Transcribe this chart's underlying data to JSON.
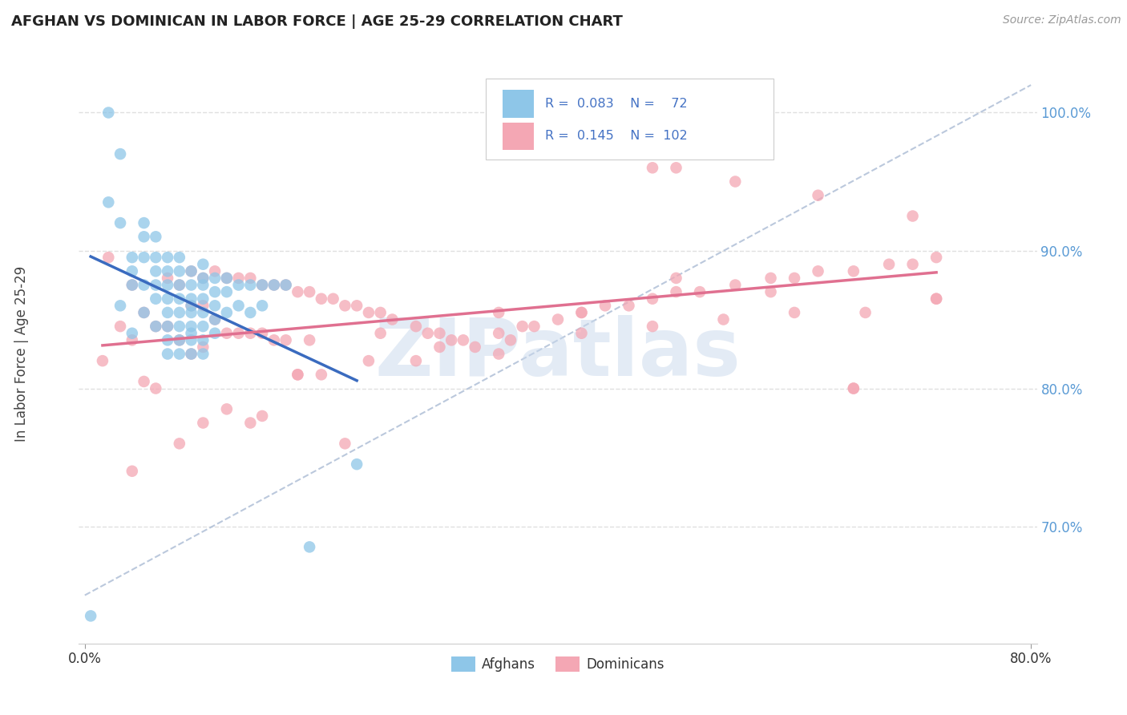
{
  "title": "AFGHAN VS DOMINICAN IN LABOR FORCE | AGE 25-29 CORRELATION CHART",
  "source": "Source: ZipAtlas.com",
  "ylabel": "In Labor Force | Age 25-29",
  "xlim": [
    -0.005,
    0.805
  ],
  "ylim": [
    0.615,
    1.035
  ],
  "xticks": [
    0.0,
    0.8
  ],
  "xticklabels": [
    "0.0%",
    "80.0%"
  ],
  "yticks": [
    0.7,
    0.8,
    0.9,
    1.0
  ],
  "yticklabels": [
    "70.0%",
    "80.0%",
    "90.0%",
    "100.0%"
  ],
  "ytick_color": "#5b9bd5",
  "xtick_color": "#333333",
  "afghan_color": "#8ec6e8",
  "dominican_color": "#f4a7b4",
  "afghan_R": 0.083,
  "afghan_N": 72,
  "dominican_R": 0.145,
  "dominican_N": 102,
  "legend_color": "#4472c4",
  "watermark_text": "ZIPatlas",
  "watermark_color": "#c8d8ec",
  "watermark_alpha": 0.5,
  "background_color": "#ffffff",
  "afghan_trend_color": "#3a6bbf",
  "dominican_trend_color": "#e07090",
  "diagonal_color": "#aabbd4",
  "grid_color": "#e0e0e0",
  "afghan_scatter_x": [
    0.005,
    0.02,
    0.02,
    0.03,
    0.03,
    0.03,
    0.04,
    0.04,
    0.04,
    0.04,
    0.05,
    0.05,
    0.05,
    0.05,
    0.05,
    0.06,
    0.06,
    0.06,
    0.06,
    0.06,
    0.06,
    0.07,
    0.07,
    0.07,
    0.07,
    0.07,
    0.07,
    0.07,
    0.07,
    0.08,
    0.08,
    0.08,
    0.08,
    0.08,
    0.08,
    0.08,
    0.08,
    0.09,
    0.09,
    0.09,
    0.09,
    0.09,
    0.09,
    0.09,
    0.09,
    0.09,
    0.1,
    0.1,
    0.1,
    0.1,
    0.1,
    0.1,
    0.1,
    0.1,
    0.11,
    0.11,
    0.11,
    0.11,
    0.11,
    0.12,
    0.12,
    0.12,
    0.13,
    0.13,
    0.14,
    0.14,
    0.15,
    0.15,
    0.16,
    0.17,
    0.19,
    0.23
  ],
  "afghan_scatter_y": [
    0.635,
    1.0,
    0.935,
    0.97,
    0.92,
    0.86,
    0.895,
    0.885,
    0.875,
    0.84,
    0.92,
    0.91,
    0.895,
    0.875,
    0.855,
    0.91,
    0.895,
    0.885,
    0.875,
    0.865,
    0.845,
    0.895,
    0.885,
    0.875,
    0.865,
    0.855,
    0.845,
    0.835,
    0.825,
    0.895,
    0.885,
    0.875,
    0.865,
    0.855,
    0.845,
    0.835,
    0.825,
    0.885,
    0.875,
    0.865,
    0.86,
    0.855,
    0.845,
    0.84,
    0.835,
    0.825,
    0.89,
    0.88,
    0.875,
    0.865,
    0.855,
    0.845,
    0.835,
    0.825,
    0.88,
    0.87,
    0.86,
    0.85,
    0.84,
    0.88,
    0.87,
    0.855,
    0.875,
    0.86,
    0.875,
    0.855,
    0.875,
    0.86,
    0.875,
    0.875,
    0.685,
    0.745
  ],
  "dominican_scatter_x": [
    0.015,
    0.02,
    0.03,
    0.04,
    0.04,
    0.05,
    0.05,
    0.06,
    0.06,
    0.07,
    0.07,
    0.08,
    0.08,
    0.09,
    0.09,
    0.09,
    0.1,
    0.1,
    0.1,
    0.11,
    0.11,
    0.12,
    0.12,
    0.13,
    0.13,
    0.14,
    0.14,
    0.15,
    0.15,
    0.16,
    0.16,
    0.17,
    0.17,
    0.18,
    0.19,
    0.19,
    0.2,
    0.21,
    0.22,
    0.23,
    0.24,
    0.25,
    0.26,
    0.28,
    0.29,
    0.3,
    0.31,
    0.32,
    0.33,
    0.35,
    0.37,
    0.38,
    0.4,
    0.42,
    0.44,
    0.46,
    0.48,
    0.5,
    0.52,
    0.55,
    0.58,
    0.6,
    0.62,
    0.65,
    0.68,
    0.7,
    0.72,
    0.04,
    0.08,
    0.1,
    0.12,
    0.14,
    0.18,
    0.22,
    0.28,
    0.35,
    0.42,
    0.5,
    0.58,
    0.65,
    0.72,
    0.4,
    0.48,
    0.55,
    0.62,
    0.7,
    0.18,
    0.24,
    0.3,
    0.36,
    0.42,
    0.48,
    0.54,
    0.6,
    0.66,
    0.5,
    0.65,
    0.72,
    0.2,
    0.15,
    0.25,
    0.35
  ],
  "dominican_scatter_y": [
    0.82,
    0.895,
    0.845,
    0.875,
    0.835,
    0.855,
    0.805,
    0.845,
    0.8,
    0.88,
    0.845,
    0.875,
    0.835,
    0.885,
    0.86,
    0.825,
    0.88,
    0.86,
    0.83,
    0.885,
    0.85,
    0.88,
    0.84,
    0.88,
    0.84,
    0.88,
    0.84,
    0.875,
    0.84,
    0.875,
    0.835,
    0.875,
    0.835,
    0.87,
    0.87,
    0.835,
    0.865,
    0.865,
    0.86,
    0.86,
    0.855,
    0.855,
    0.85,
    0.845,
    0.84,
    0.84,
    0.835,
    0.835,
    0.83,
    0.84,
    0.845,
    0.845,
    0.85,
    0.855,
    0.86,
    0.86,
    0.865,
    0.87,
    0.87,
    0.875,
    0.88,
    0.88,
    0.885,
    0.885,
    0.89,
    0.89,
    0.895,
    0.74,
    0.76,
    0.775,
    0.785,
    0.775,
    0.81,
    0.76,
    0.82,
    0.825,
    0.855,
    0.88,
    0.87,
    0.8,
    0.865,
    0.97,
    0.96,
    0.95,
    0.94,
    0.925,
    0.81,
    0.82,
    0.83,
    0.835,
    0.84,
    0.845,
    0.85,
    0.855,
    0.855,
    0.96,
    0.8,
    0.865,
    0.81,
    0.78,
    0.84,
    0.855
  ]
}
